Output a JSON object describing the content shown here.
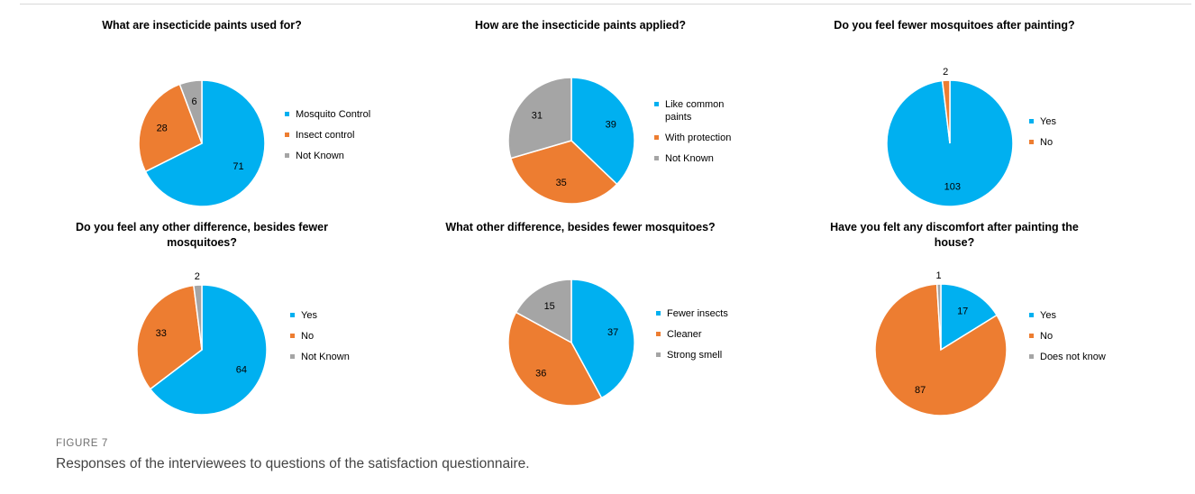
{
  "colors": {
    "blue": "#00b0f0",
    "orange": "#ed7d31",
    "gray": "#a5a5a5",
    "text": "#000000"
  },
  "chart_data": [
    {
      "type": "pie",
      "title": "What are insecticide paints used for?",
      "categories": [
        "Mosquito Control",
        "Insect control",
        "Not Known"
      ],
      "values": [
        71,
        28,
        6
      ],
      "legend": "right"
    },
    {
      "type": "pie",
      "title": "How are the insecticide paints applied?",
      "categories": [
        "Like common paints",
        "With protection",
        "Not Known"
      ],
      "legend_lines": [
        [
          "Like common",
          "paints"
        ],
        [
          "With protection"
        ],
        [
          "Not Known"
        ]
      ],
      "values": [
        39,
        35,
        31
      ],
      "legend": "right"
    },
    {
      "type": "pie",
      "title": "Do you feel fewer mosquitoes after painting?",
      "categories": [
        "Yes",
        "No"
      ],
      "values": [
        103,
        2
      ],
      "legend": "right"
    },
    {
      "type": "pie",
      "title": "Do you feel any other difference, besides fewer mosquitoes?",
      "title_lines": [
        "Do you feel any other difference, besides fewer",
        "mosquitoes?"
      ],
      "categories": [
        "Yes",
        "No",
        "Not Known"
      ],
      "values": [
        64,
        33,
        2
      ],
      "legend": "right"
    },
    {
      "type": "pie",
      "title": "What other difference, besides fewer mosquitoes?",
      "categories": [
        "Fewer insects",
        "Cleaner",
        "Strong smell"
      ],
      "values": [
        37,
        36,
        15
      ],
      "legend": "right"
    },
    {
      "type": "pie",
      "title": "Have you felt any discomfort after painting the house?",
      "title_lines": [
        "Have you felt any discomfort after painting the",
        "house?"
      ],
      "categories": [
        "Yes",
        "No",
        "Does not know"
      ],
      "values": [
        17,
        87,
        1
      ],
      "legend": "right"
    }
  ],
  "figure": {
    "label": "FIGURE 7",
    "caption": "Responses of the interviewees to questions of the satisfaction questionnaire."
  }
}
